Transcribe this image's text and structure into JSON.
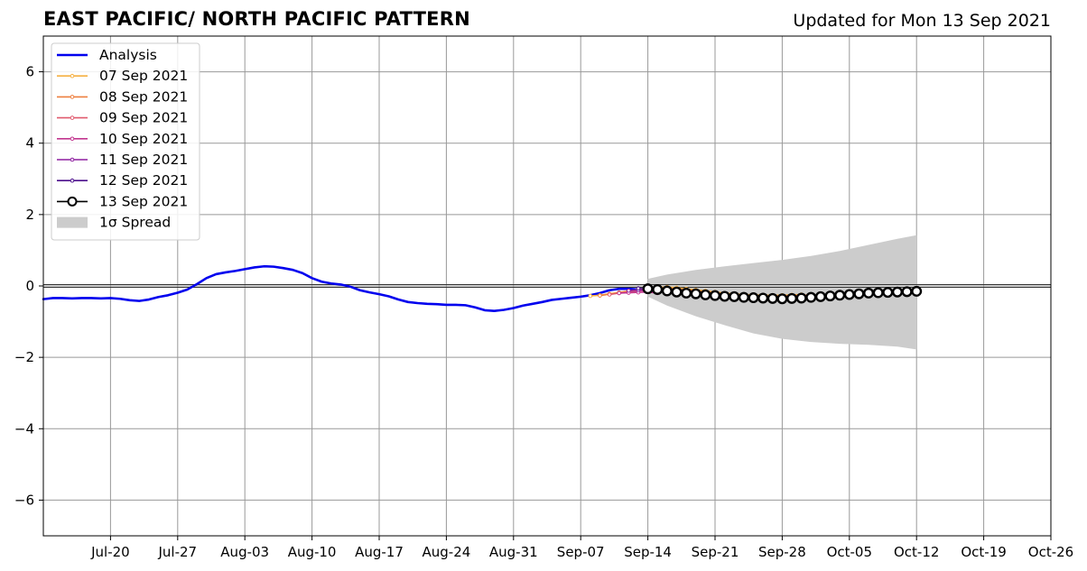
{
  "header": {
    "title": "EAST PACIFIC/ NORTH PACIFIC PATTERN",
    "updated": "Updated for Mon 13 Sep 2021"
  },
  "chart_data": {
    "type": "line",
    "title": "EAST PACIFIC/ NORTH PACIFIC PATTERN",
    "xlabel": "",
    "ylabel": "",
    "xlim": [
      "2021-07-13",
      "2021-10-26"
    ],
    "ylim": [
      -7,
      7
    ],
    "grid": true,
    "legend_placement": "upper-left",
    "x_ticks": [
      "Jul-20",
      "Jul-27",
      "Aug-03",
      "Aug-10",
      "Aug-17",
      "Aug-24",
      "Aug-31",
      "Sep-07",
      "Sep-14",
      "Sep-21",
      "Sep-28",
      "Oct-05",
      "Oct-12",
      "Oct-19",
      "Oct-26"
    ],
    "x_tick_dates": [
      "2021-07-20",
      "2021-07-27",
      "2021-08-03",
      "2021-08-10",
      "2021-08-17",
      "2021-08-24",
      "2021-08-31",
      "2021-09-07",
      "2021-09-14",
      "2021-09-21",
      "2021-09-28",
      "2021-10-05",
      "2021-10-12",
      "2021-10-19",
      "2021-10-26"
    ],
    "y_ticks": [
      6,
      4,
      2,
      0,
      -2,
      -4,
      -6
    ],
    "y_tick_labels": [
      "6",
      "4",
      "2",
      "0",
      "−2",
      "−4",
      "−6"
    ],
    "colors": {
      "analysis": "#0000ee",
      "spread": "#cccccc",
      "grid": "#999999"
    },
    "series": [
      {
        "name": "Analysis",
        "color": "#0000ee",
        "x": [
          "2021-07-13",
          "2021-07-14",
          "2021-07-15",
          "2021-07-16",
          "2021-07-17",
          "2021-07-18",
          "2021-07-19",
          "2021-07-20",
          "2021-07-21",
          "2021-07-22",
          "2021-07-23",
          "2021-07-24",
          "2021-07-25",
          "2021-07-26",
          "2021-07-27",
          "2021-07-28",
          "2021-07-29",
          "2021-07-30",
          "2021-07-31",
          "2021-08-01",
          "2021-08-02",
          "2021-08-03",
          "2021-08-04",
          "2021-08-05",
          "2021-08-06",
          "2021-08-07",
          "2021-08-08",
          "2021-08-09",
          "2021-08-10",
          "2021-08-11",
          "2021-08-12",
          "2021-08-13",
          "2021-08-14",
          "2021-08-15",
          "2021-08-16",
          "2021-08-17",
          "2021-08-18",
          "2021-08-19",
          "2021-08-20",
          "2021-08-21",
          "2021-08-22",
          "2021-08-23",
          "2021-08-24",
          "2021-08-25",
          "2021-08-26",
          "2021-08-27",
          "2021-08-28",
          "2021-08-29",
          "2021-08-30",
          "2021-08-31",
          "2021-09-01",
          "2021-09-02",
          "2021-09-03",
          "2021-09-04",
          "2021-09-05",
          "2021-09-06",
          "2021-09-07",
          "2021-09-08",
          "2021-09-09",
          "2021-09-10",
          "2021-09-11",
          "2021-09-12",
          "2021-09-13"
        ],
        "y": [
          -0.37,
          -0.34,
          -0.34,
          -0.35,
          -0.34,
          -0.34,
          -0.35,
          -0.34,
          -0.36,
          -0.4,
          -0.42,
          -0.38,
          -0.31,
          -0.26,
          -0.19,
          -0.1,
          0.05,
          0.22,
          0.33,
          0.38,
          0.42,
          0.47,
          0.52,
          0.55,
          0.54,
          0.5,
          0.45,
          0.36,
          0.22,
          0.12,
          0.07,
          0.04,
          -0.02,
          -0.12,
          -0.18,
          -0.23,
          -0.29,
          -0.38,
          -0.45,
          -0.48,
          -0.5,
          -0.51,
          -0.53,
          -0.53,
          -0.54,
          -0.6,
          -0.68,
          -0.7,
          -0.67,
          -0.62,
          -0.55,
          -0.5,
          -0.45,
          -0.39,
          -0.36,
          -0.33,
          -0.3,
          -0.26,
          -0.2,
          -0.12,
          -0.08,
          -0.08,
          -0.1
        ]
      },
      {
        "name": "07 Sep 2021",
        "color": "#f5b042",
        "x": [
          "2021-09-08",
          "2021-09-09",
          "2021-09-10",
          "2021-09-11",
          "2021-09-12",
          "2021-09-13",
          "2021-09-14",
          "2021-09-15",
          "2021-09-16",
          "2021-09-17",
          "2021-09-18",
          "2021-09-19",
          "2021-09-20",
          "2021-09-21",
          "2021-09-22",
          "2021-09-23",
          "2021-09-24",
          "2021-09-25",
          "2021-09-26",
          "2021-09-27",
          "2021-09-28",
          "2021-09-29",
          "2021-09-30"
        ],
        "y": [
          -0.28,
          -0.26,
          -0.22,
          -0.18,
          -0.14,
          -0.11,
          -0.07,
          -0.04,
          -0.03,
          -0.05,
          -0.08,
          -0.11,
          -0.14,
          -0.17,
          -0.2,
          -0.22,
          -0.24,
          -0.25,
          -0.26,
          -0.26,
          -0.26,
          -0.25,
          -0.24
        ]
      },
      {
        "name": "08 Sep 2021",
        "color": "#ee7f3f",
        "x": [
          "2021-09-09",
          "2021-09-10",
          "2021-09-11",
          "2021-09-12",
          "2021-09-13",
          "2021-09-14",
          "2021-09-15",
          "2021-09-16",
          "2021-09-17",
          "2021-09-18",
          "2021-09-19",
          "2021-09-20",
          "2021-09-21",
          "2021-09-22",
          "2021-09-23",
          "2021-09-24",
          "2021-09-25",
          "2021-09-26",
          "2021-09-27",
          "2021-09-28",
          "2021-09-29",
          "2021-09-30",
          "2021-10-01"
        ],
        "y": [
          -0.27,
          -0.23,
          -0.19,
          -0.15,
          -0.11,
          -0.08,
          -0.06,
          -0.06,
          -0.08,
          -0.11,
          -0.14,
          -0.17,
          -0.2,
          -0.23,
          -0.25,
          -0.27,
          -0.28,
          -0.29,
          -0.29,
          -0.28,
          -0.27,
          -0.26,
          -0.25
        ]
      },
      {
        "name": "09 Sep 2021",
        "color": "#e05a6e",
        "x": [
          "2021-09-10",
          "2021-09-11",
          "2021-09-12",
          "2021-09-13",
          "2021-09-14",
          "2021-09-15",
          "2021-09-16",
          "2021-09-17",
          "2021-09-18",
          "2021-09-19",
          "2021-09-20",
          "2021-09-21",
          "2021-09-22",
          "2021-09-23",
          "2021-09-24",
          "2021-09-25",
          "2021-09-26",
          "2021-09-27",
          "2021-09-28",
          "2021-09-29",
          "2021-09-30",
          "2021-10-01",
          "2021-10-02"
        ],
        "y": [
          -0.24,
          -0.2,
          -0.17,
          -0.14,
          -0.12,
          -0.11,
          -0.12,
          -0.14,
          -0.17,
          -0.2,
          -0.23,
          -0.26,
          -0.28,
          -0.3,
          -0.31,
          -0.32,
          -0.32,
          -0.31,
          -0.3,
          -0.29,
          -0.28,
          -0.27,
          -0.26
        ]
      },
      {
        "name": "10 Sep 2021",
        "color": "#c2368f",
        "x": [
          "2021-09-11",
          "2021-09-12",
          "2021-09-13",
          "2021-09-14",
          "2021-09-15"
        ],
        "y": [
          -0.2,
          -0.19,
          -0.18,
          -0.17,
          -0.2
        ]
      },
      {
        "name": "11 Sep 2021",
        "color": "#8e1fa0",
        "x": [
          "2021-09-12",
          "2021-09-13",
          "2021-09-14",
          "2021-09-15"
        ],
        "y": [
          -0.13,
          -0.12,
          -0.12,
          -0.15
        ]
      },
      {
        "name": "12 Sep 2021",
        "color": "#4b0f8c",
        "x": [
          "2021-09-13",
          "2021-09-14",
          "2021-09-15"
        ],
        "y": [
          -0.07,
          -0.08,
          -0.1
        ]
      },
      {
        "name": "13 Sep 2021",
        "color": "#000000",
        "x": [
          "2021-09-14",
          "2021-09-15",
          "2021-09-16",
          "2021-09-17",
          "2021-09-18",
          "2021-09-19",
          "2021-09-20",
          "2021-09-21",
          "2021-09-22",
          "2021-09-23",
          "2021-09-24",
          "2021-09-25",
          "2021-09-26",
          "2021-09-27",
          "2021-09-28",
          "2021-09-29",
          "2021-09-30",
          "2021-10-01",
          "2021-10-02",
          "2021-10-03",
          "2021-10-04",
          "2021-10-05",
          "2021-10-06",
          "2021-10-07",
          "2021-10-08",
          "2021-10-09",
          "2021-10-10",
          "2021-10-11",
          "2021-10-12"
        ],
        "y": [
          -0.08,
          -0.1,
          -0.14,
          -0.17,
          -0.2,
          -0.22,
          -0.25,
          -0.27,
          -0.29,
          -0.3,
          -0.32,
          -0.33,
          -0.34,
          -0.35,
          -0.36,
          -0.35,
          -0.34,
          -0.32,
          -0.3,
          -0.28,
          -0.26,
          -0.24,
          -0.22,
          -0.2,
          -0.19,
          -0.18,
          -0.17,
          -0.16,
          -0.15
        ]
      }
    ],
    "spread": {
      "name": "1σ Spread",
      "x": [
        "2021-09-14",
        "2021-09-16",
        "2021-09-19",
        "2021-09-22",
        "2021-09-25",
        "2021-09-28",
        "2021-10-01",
        "2021-10-04",
        "2021-10-07",
        "2021-10-10",
        "2021-10-12"
      ],
      "upper": [
        0.2,
        0.32,
        0.45,
        0.55,
        0.64,
        0.73,
        0.84,
        0.98,
        1.15,
        1.32,
        1.42
      ],
      "lower": [
        -0.3,
        -0.55,
        -0.85,
        -1.1,
        -1.33,
        -1.48,
        -1.57,
        -1.62,
        -1.65,
        -1.7,
        -1.78
      ]
    }
  }
}
